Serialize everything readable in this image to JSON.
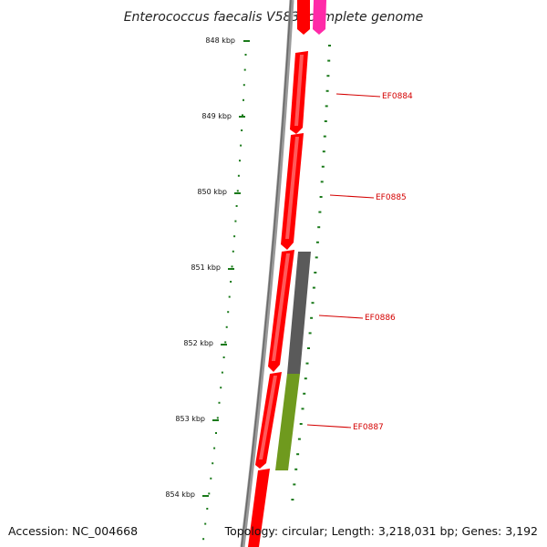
{
  "title": "Enterococcus faecalis V583, complete genome",
  "ruler": {
    "labels": [
      "848 kbp",
      "849 kbp",
      "850 kbp",
      "851 kbp",
      "852 kbp",
      "853 kbp",
      "854 kbp"
    ]
  },
  "genes": [
    {
      "label": "EF0884"
    },
    {
      "label": "EF0885"
    },
    {
      "label": "EF0886"
    },
    {
      "label": "EF0887"
    }
  ],
  "footer": {
    "accession": "Accession: NC_004668",
    "topology": "Topology: circular; Length: 3,218,031 bp; Genes: 3,192"
  },
  "colors": {
    "cds": "#ff0000",
    "grey_feature": "#555555",
    "olive_feature": "#6f9a1e",
    "pink_feature": "#ff2aa8",
    "backbone": "#888888",
    "ruler_ticks": "#1a7a1a",
    "gene_label": "#d40000"
  }
}
